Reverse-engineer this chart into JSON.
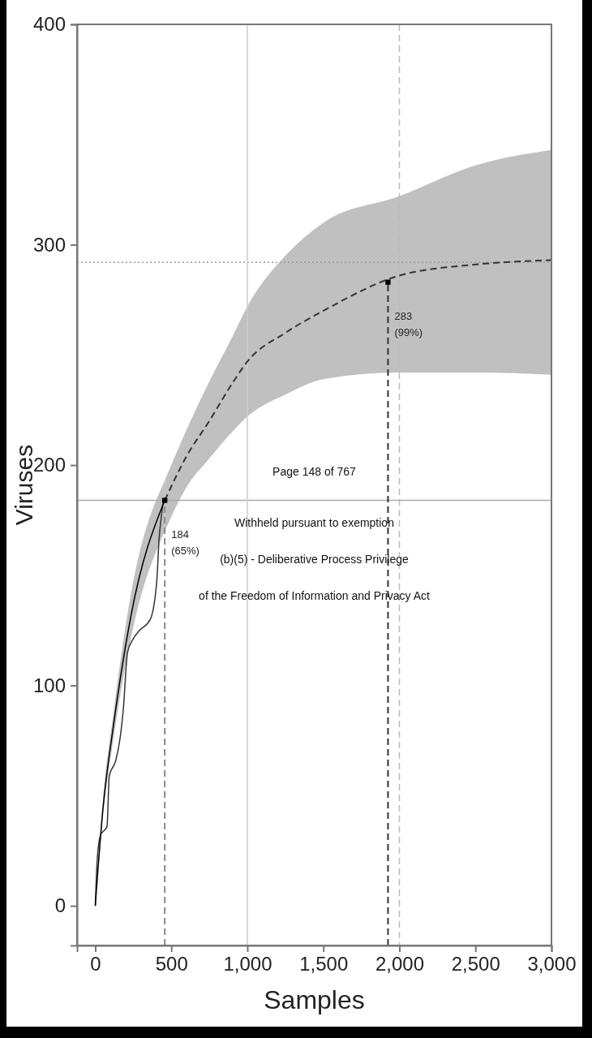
{
  "chart_data": {
    "type": "line",
    "xlabel": "Samples",
    "ylabel": "Viruses",
    "xlim": [
      -120,
      3000
    ],
    "ylim": [
      -18,
      400
    ],
    "xticks": [
      0,
      500,
      {
        "value": 1000,
        "label": "1,000"
      },
      {
        "value": 1500,
        "label": "1,500"
      },
      {
        "value": 2000,
        "label": "2,000"
      },
      {
        "value": 2500,
        "label": "2,500"
      },
      {
        "value": 3000,
        "label": "3,000"
      }
    ],
    "yticks": [
      0,
      100,
      200,
      300,
      400
    ],
    "grid": false,
    "series": [
      {
        "color": "#333333",
        "line_style": "solid",
        "x": [
          0,
          12,
          34,
          77,
          92,
          135,
          163,
          184,
          212,
          248,
          291,
          362,
          405,
          420,
          430,
          448
        ],
        "values": [
          0,
          20,
          32,
          36,
          59,
          66,
          76,
          89,
          115,
          121,
          125,
          130,
          148,
          167,
          174,
          184
        ]
      },
      {
        "color": "#000000",
        "line_style": "solid",
        "x": [
          0,
          49,
          120,
          233,
          457
        ],
        "values": [
          0,
          43,
          82,
          131,
          184
        ],
        "lower": [
          0,
          39,
          76,
          121,
          170
        ],
        "upper": [
          0,
          47,
          88,
          141,
          193
        ]
      },
      {
        "color": "#333333",
        "line_style": "dashed",
        "x": [
          457,
          600,
          750,
          900,
          1000,
          1250,
          1500,
          2000,
          2500,
          3000
        ],
        "values": [
          184,
          204,
          220,
          237,
          247,
          260,
          270,
          286,
          291,
          293
        ],
        "lower": [
          170,
          190,
          203,
          215,
          222,
          232,
          239,
          242,
          242,
          241
        ],
        "upper": [
          193,
          216,
          238,
          258,
          272,
          295,
          310,
          322,
          336,
          343
        ]
      },
      {
        "color": "#888888",
        "line_style": "dashed",
        "x": [
          457,
          457
        ],
        "values": [
          -18,
          184
        ]
      },
      {
        "color": "#333333",
        "line_style": "dashed",
        "x": [
          1925,
          1925
        ],
        "values": [
          -18,
          283
        ]
      },
      {
        "type": "scatter",
        "marker": "square",
        "color": "#000000",
        "x": [
          457,
          1925
        ],
        "values": [
          184,
          283
        ]
      }
    ],
    "ref_lines": [
      {
        "axis": "y",
        "value": 184,
        "color": "#aaaaaa",
        "line_style": "solid"
      },
      {
        "axis": "y",
        "value": 292,
        "color": "#999999",
        "line_style": "dotted"
      },
      {
        "axis": "x",
        "value": 1000,
        "color": "#cccccc",
        "line_style": "solid"
      },
      {
        "axis": "x",
        "value": 2000,
        "color": "#bbbbbb",
        "line_style": "dashed"
      }
    ],
    "annotations": [
      {
        "text": "184 (65%)",
        "x": 457,
        "y": 184
      },
      {
        "text": "283 (99%)",
        "x": 1925,
        "y": 283
      },
      "Page 148 of 767",
      "Withheld pursuant to exemption",
      "(b)(5) - Deliberative Process Privilege",
      "of the Freedom of Information and Privacy Act"
    ]
  }
}
